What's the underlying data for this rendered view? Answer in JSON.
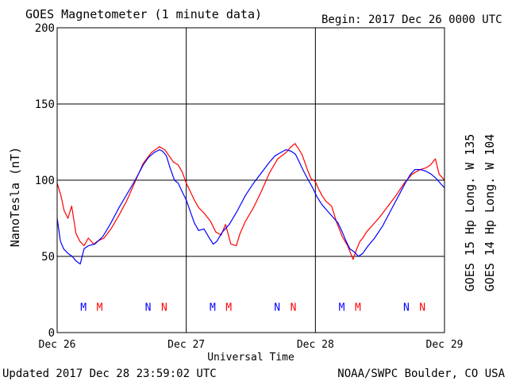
{
  "header": {
    "title": "GOES Magnetometer (1 minute data)",
    "begin": "Begin:  2017 Dec 26 0000 UTC"
  },
  "footer": {
    "updated": "Updated 2017 Dec 28 23:59:02 UTC",
    "source": "NOAA/SWPC Boulder, CO USA"
  },
  "colors": {
    "goes15": "#ff0000",
    "goes14": "#0000ff"
  },
  "chart_data": {
    "type": "line",
    "xlabel": "Universal Time",
    "ylabel": "NanoTesla (nT)",
    "xlim": [
      0,
      72
    ],
    "ylim": [
      0,
      200
    ],
    "x_unit": "hours since 2017 Dec 26 0000 UTC",
    "x_ticks": [
      {
        "x": 0,
        "label": "Dec 26"
      },
      {
        "x": 24,
        "label": "Dec 27"
      },
      {
        "x": 48,
        "label": "Dec 28"
      },
      {
        "x": 72,
        "label": "Dec 29"
      }
    ],
    "y_ticks": [
      {
        "y": 0,
        "label": "0"
      },
      {
        "y": 50,
        "label": "50"
      },
      {
        "y": 100,
        "label": "100"
      },
      {
        "y": 150,
        "label": "150"
      },
      {
        "y": 200,
        "label": "200"
      }
    ],
    "grid": true,
    "series": [
      {
        "name": "GOES 15 Hp  Long. W 135",
        "color": "#ff0000",
        "x": [
          0,
          0.7,
          1.3,
          2,
          2.7,
          3.5,
          4.2,
          5,
          5.8,
          6.8,
          7.5,
          8.7,
          10,
          11.5,
          13,
          14.6,
          16,
          17.5,
          19,
          20,
          20.8,
          21.6,
          22.5,
          23.3,
          24,
          24.7,
          25.5,
          26.3,
          27.4,
          28.5,
          29.5,
          30.5,
          31.3,
          32.3,
          33.3,
          34,
          35,
          36.5,
          38,
          39.5,
          41,
          42.5,
          43.5,
          44.2,
          44.8,
          45.5,
          46.5,
          47.2,
          48,
          48.5,
          49.2,
          50,
          51,
          52,
          53,
          54,
          55,
          55.7,
          56.3,
          56.8,
          57.5,
          58.5,
          60,
          61.5,
          63,
          64.5,
          66,
          67.5,
          68.5,
          69.4,
          70.3,
          71,
          72
        ],
        "values": [
          98,
          90,
          80,
          75,
          83,
          65,
          60,
          57,
          62,
          58,
          60,
          62,
          68,
          77,
          87,
          100,
          111,
          118,
          122,
          120,
          116,
          112,
          110,
          105,
          98,
          93,
          87,
          82,
          78,
          73,
          66,
          64,
          71,
          58,
          57,
          65,
          73,
          82,
          93,
          105,
          114,
          118,
          122,
          124,
          121,
          117,
          107,
          101,
          99,
          95,
          90,
          86,
          83,
          72,
          63,
          57,
          48,
          55,
          60,
          62,
          66,
          70,
          76,
          83,
          90,
          98,
          104,
          107,
          108,
          110,
          114,
          104,
          100
        ]
      },
      {
        "name": "GOES 14 Hp  Long. W 104",
        "color": "#0000ff",
        "x": [
          0,
          0.6,
          1.2,
          2,
          2.8,
          3.5,
          4.3,
          5,
          5.8,
          7,
          8.5,
          10,
          11.5,
          13,
          14.5,
          16,
          17,
          18,
          19,
          19.6,
          20.3,
          21,
          21.8,
          22.5,
          23.3,
          24,
          24.7,
          25.5,
          26.3,
          27.3,
          28.3,
          29,
          29.7,
          30.7,
          32,
          33.5,
          35,
          36.5,
          38,
          39.5,
          40.5,
          41.5,
          42.5,
          43.5,
          44.3,
          45,
          45.8,
          46.7,
          47.5,
          48.3,
          49.2,
          50.2,
          51.2,
          52.2,
          53,
          53.7,
          54.4,
          55.2,
          56,
          56.8,
          57.8,
          59,
          60.5,
          62,
          63.5,
          64.7,
          65.7,
          66.5,
          67.5,
          68.5,
          69.5,
          70.5,
          71.2,
          72
        ],
        "values": [
          75,
          60,
          55,
          52,
          50,
          47,
          45,
          55,
          57,
          58,
          63,
          72,
          82,
          91,
          100,
          110,
          115,
          118,
          120,
          119,
          116,
          108,
          100,
          98,
          92,
          87,
          80,
          72,
          67,
          68,
          62,
          58,
          60,
          66,
          71,
          80,
          90,
          98,
          105,
          112,
          116,
          118,
          120,
          119,
          117,
          112,
          106,
          100,
          95,
          89,
          84,
          80,
          76,
          72,
          66,
          60,
          55,
          53,
          50,
          52,
          57,
          62,
          70,
          80,
          90,
          98,
          104,
          107,
          107,
          106,
          104,
          101,
          98,
          95
        ]
      }
    ],
    "annotations": [
      {
        "text": "M",
        "x": 4.9,
        "y": 17,
        "color": "#0000ff"
      },
      {
        "text": "M",
        "x": 7.9,
        "y": 17,
        "color": "#ff0000"
      },
      {
        "text": "N",
        "x": 16.9,
        "y": 17,
        "color": "#0000ff"
      },
      {
        "text": "N",
        "x": 19.9,
        "y": 17,
        "color": "#ff0000"
      },
      {
        "text": "M",
        "x": 28.9,
        "y": 17,
        "color": "#0000ff"
      },
      {
        "text": "M",
        "x": 31.9,
        "y": 17,
        "color": "#ff0000"
      },
      {
        "text": "N",
        "x": 40.9,
        "y": 17,
        "color": "#0000ff"
      },
      {
        "text": "N",
        "x": 43.9,
        "y": 17,
        "color": "#ff0000"
      },
      {
        "text": "M",
        "x": 52.9,
        "y": 17,
        "color": "#0000ff"
      },
      {
        "text": "M",
        "x": 55.9,
        "y": 17,
        "color": "#ff0000"
      },
      {
        "text": "N",
        "x": 64.9,
        "y": 17,
        "color": "#0000ff"
      },
      {
        "text": "N",
        "x": 67.9,
        "y": 17,
        "color": "#ff0000"
      }
    ]
  }
}
